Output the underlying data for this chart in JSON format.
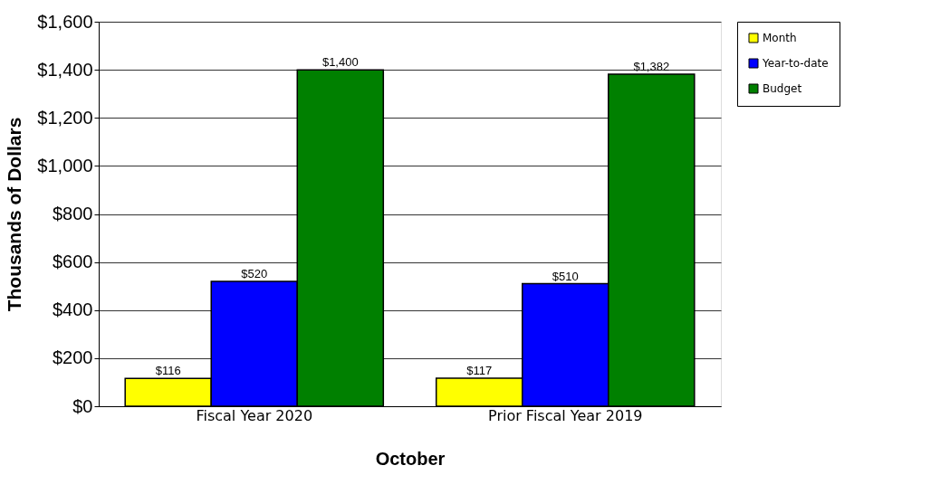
{
  "chart_data": {
    "type": "bar",
    "xlabel": "October",
    "ylabel": "Thousands of Dollars",
    "categories": [
      "Fiscal Year 2020",
      "Prior Fiscal Year 2019"
    ],
    "series": [
      {
        "name": "Month",
        "color": "#ffff00",
        "values": [
          116,
          117
        ],
        "value_labels": [
          "$116",
          "$117"
        ]
      },
      {
        "name": "Year-to-date",
        "color": "#0000ff",
        "values": [
          520,
          510
        ],
        "value_labels": [
          "$520",
          "$510"
        ]
      },
      {
        "name": "Budget",
        "color": "#008000",
        "values": [
          1400,
          1382
        ],
        "value_labels": [
          "$1,400",
          "$1,382"
        ]
      }
    ],
    "ylim": [
      0,
      1600
    ],
    "yticks": [
      {
        "value": 0,
        "label": "$0"
      },
      {
        "value": 200,
        "label": "$200"
      },
      {
        "value": 400,
        "label": "$400"
      },
      {
        "value": 600,
        "label": "$600"
      },
      {
        "value": 800,
        "label": "$800"
      },
      {
        "value": 1000,
        "label": "$1,000"
      },
      {
        "value": 1200,
        "label": "$1,200"
      },
      {
        "value": 1400,
        "label": "$1,400"
      },
      {
        "value": 1600,
        "label": "$1,600"
      }
    ],
    "grid": "y",
    "legend": "right"
  }
}
